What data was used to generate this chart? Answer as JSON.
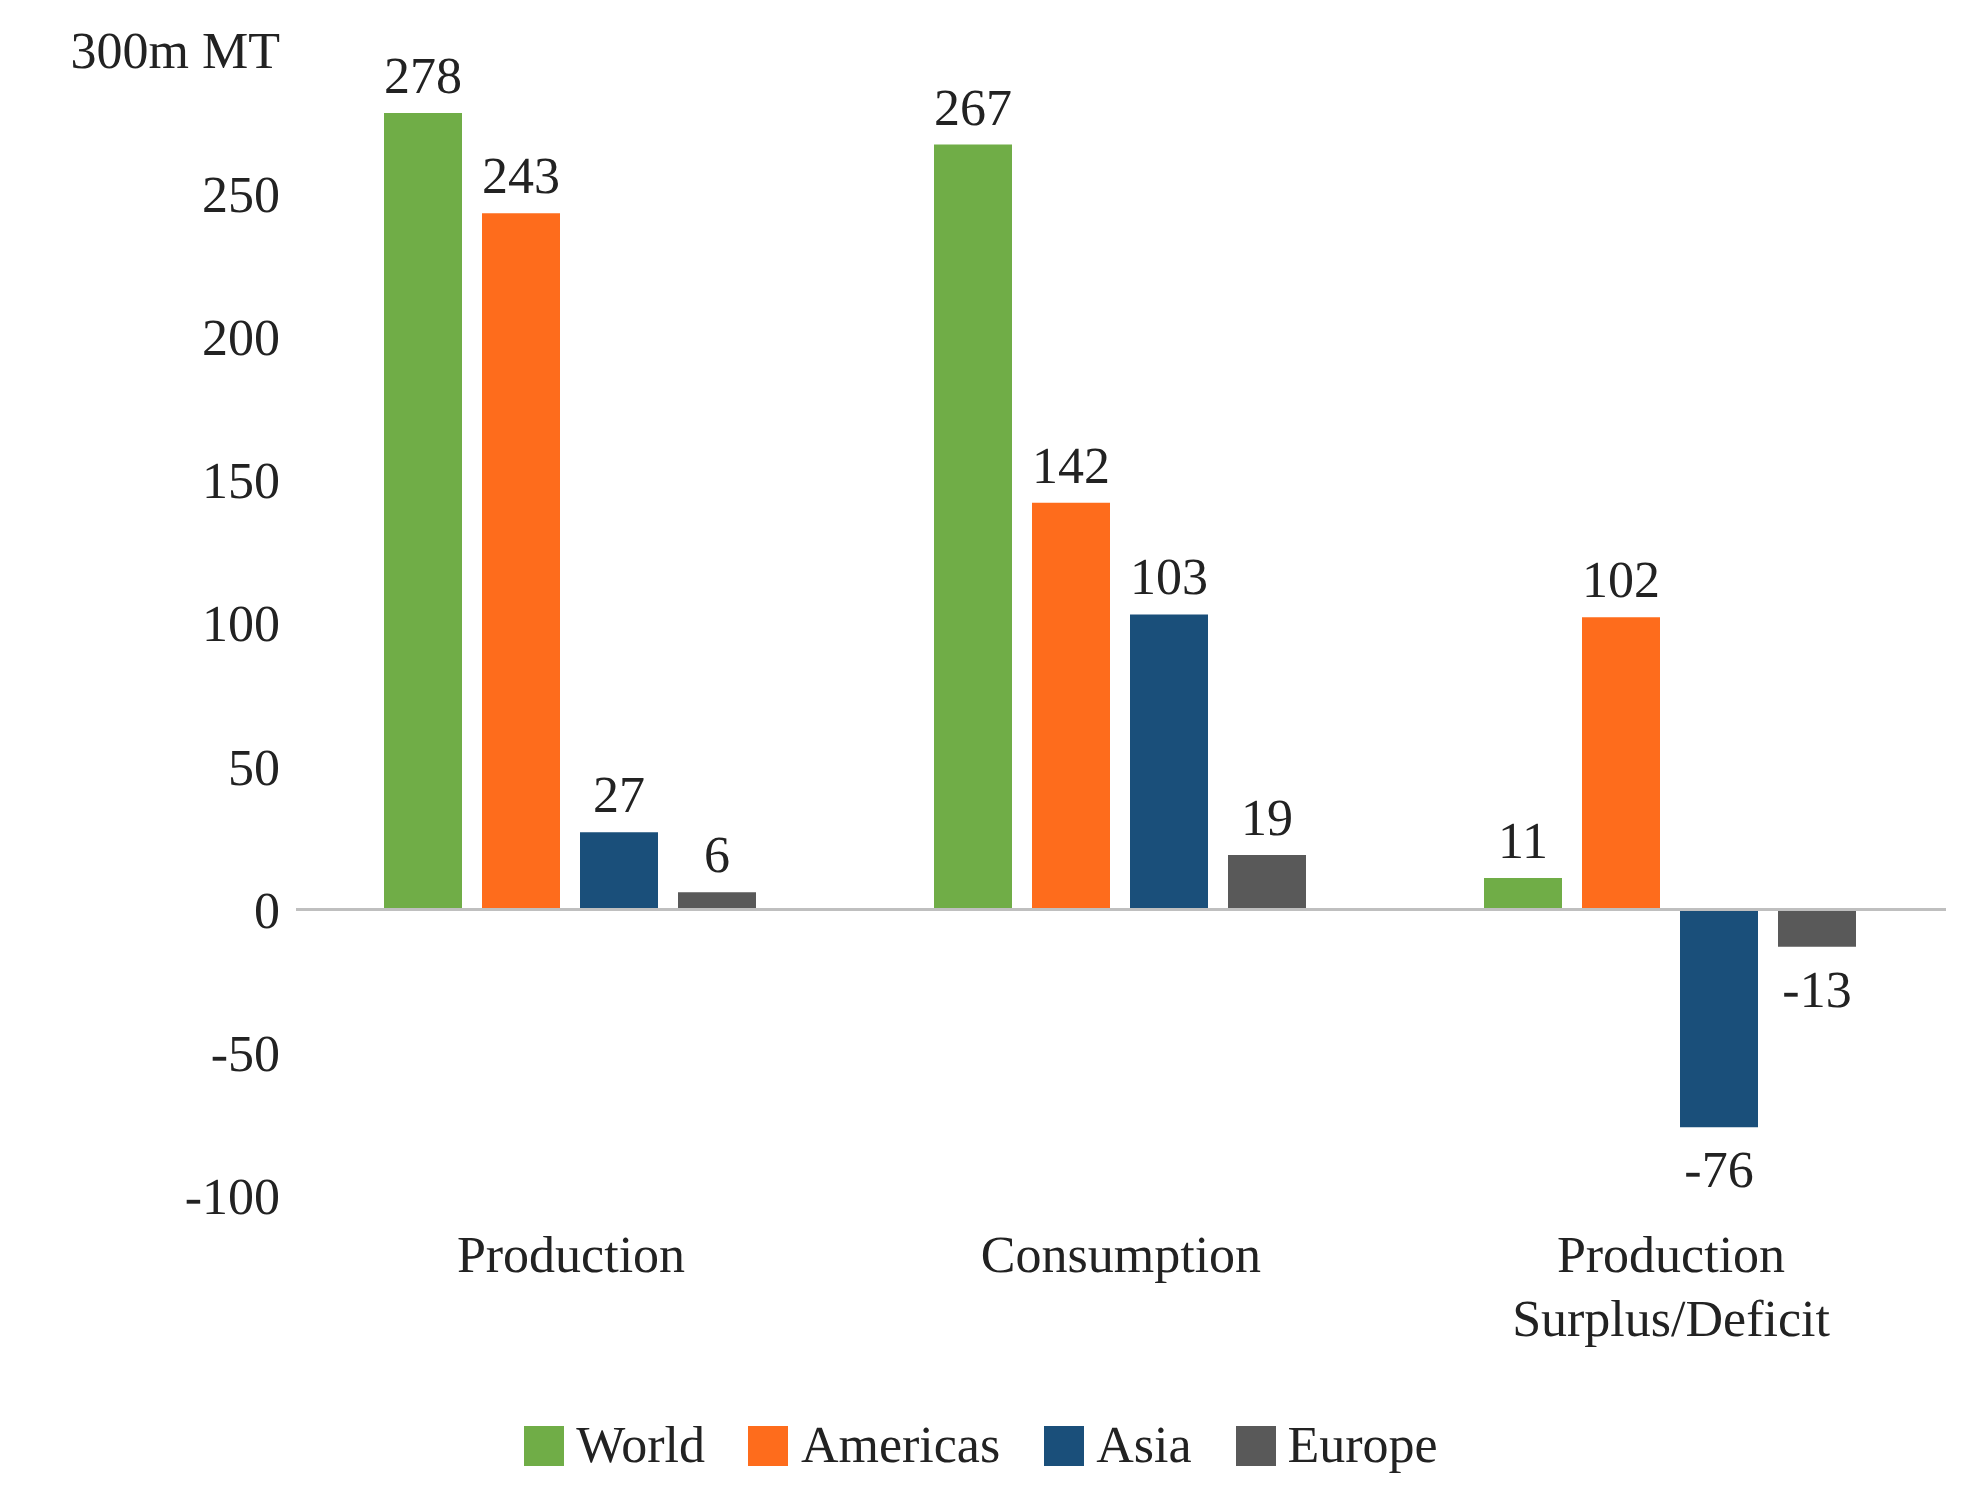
{
  "chart_data": {
    "type": "bar",
    "categories": [
      "Production",
      "Consumption",
      "Production Surplus/Deficit"
    ],
    "series": [
      {
        "name": "World",
        "color": "#70ad47",
        "values": [
          278,
          267,
          11
        ]
      },
      {
        "name": "Americas",
        "color": "#fe6c1c",
        "values": [
          243,
          142,
          102
        ]
      },
      {
        "name": "Asia",
        "color": "#1a4f7a",
        "values": [
          27,
          103,
          -76
        ]
      },
      {
        "name": "Europe",
        "color": "#595959",
        "values": [
          6,
          19,
          -13
        ]
      }
    ],
    "ylim": [
      -100,
      300
    ],
    "yticks": [
      -100,
      -50,
      0,
      50,
      100,
      150,
      200,
      250,
      {
        "value": 300,
        "label": "300m MT"
      }
    ],
    "legend": "bottom",
    "data_labels": true
  }
}
